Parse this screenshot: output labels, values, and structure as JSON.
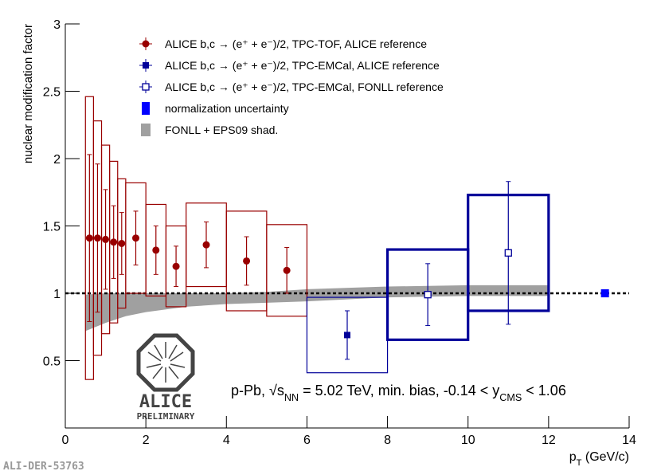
{
  "chart_data": {
    "type": "errorbar",
    "y_label": "nuclear modification factor",
    "x_label": [
      "p",
      "T",
      " (GeV/c)"
    ],
    "xlim": [
      0,
      14
    ],
    "ylim": [
      0,
      3
    ],
    "xticks": [
      0,
      2,
      4,
      6,
      8,
      10,
      12,
      14
    ],
    "yticks": [
      0.5,
      1,
      1.5,
      2,
      2.5,
      3
    ],
    "reference_line": 1,
    "series": [
      {
        "name": "ALICE b,c → (e⁺ + e⁻)/2, TPC-TOF, ALICE reference",
        "color": "#990000",
        "marker": "circle",
        "x": [
          0.6,
          0.8,
          1.0,
          1.2,
          1.4,
          1.75,
          2.25,
          2.75,
          3.5,
          4.5,
          5.5
        ],
        "xerr": [
          0.1,
          0.1,
          0.1,
          0.1,
          0.1,
          0.25,
          0.25,
          0.25,
          0.5,
          0.5,
          0.5
        ],
        "values": [
          1.41,
          1.41,
          1.4,
          1.38,
          1.37,
          1.41,
          1.32,
          1.2,
          1.36,
          1.24,
          1.17
        ],
        "stat": [
          0.62,
          0.55,
          0.37,
          0.27,
          0.23,
          0.2,
          0.18,
          0.15,
          0.17,
          0.18,
          0.17
        ],
        "sys": [
          1.05,
          0.87,
          0.7,
          0.6,
          0.48,
          0.41,
          0.34,
          0.3,
          0.31,
          0.37,
          0.34
        ]
      },
      {
        "name": "ALICE b,c → (e⁺ + e⁻)/2, TPC-EMCal, ALICE reference",
        "color": "#000099",
        "marker": "square",
        "x": [
          7
        ],
        "xerr": [
          1
        ],
        "values": [
          0.69
        ],
        "stat": [
          0.18
        ],
        "sys": [
          0.28
        ]
      },
      {
        "name": "ALICE b,c → (e⁺ + e⁻)/2, TPC-EMCal, FONLL reference",
        "color": "#000099",
        "marker": "open-square",
        "x": [
          9,
          11
        ],
        "xerr": [
          1,
          1
        ],
        "values": [
          0.99,
          1.3
        ],
        "stat": [
          0.23,
          0.53
        ],
        "sys": [
          0.335,
          0.43
        ]
      }
    ],
    "normalization": {
      "name": "normalization uncertainty",
      "color": "#0000ff",
      "x": 13.4,
      "y": 1,
      "error": 0.03
    },
    "band": {
      "name": "FONLL + EPS09 shad.",
      "color": "#a0a0a0",
      "x": [
        0.5,
        1,
        1.5,
        2,
        3,
        4,
        5,
        6,
        8,
        10,
        12
      ],
      "low": [
        0.72,
        0.78,
        0.83,
        0.86,
        0.9,
        0.92,
        0.93,
        0.94,
        0.97,
        0.98,
        0.98
      ],
      "high": [
        0.99,
        1.0,
        1.0,
        1.0,
        1.0,
        1.0,
        1.01,
        1.03,
        1.05,
        1.06,
        1.06
      ]
    },
    "annotation": [
      "p-Pb, √s",
      "NN",
      " = 5.02 TeV, min. bias, -0.14 < y",
      "CMS",
      " < 1.06"
    ],
    "logo": {
      "title": "ALICE",
      "subtitle": "PRELIMINARY"
    },
    "footer": "ALI-DER-53763"
  }
}
